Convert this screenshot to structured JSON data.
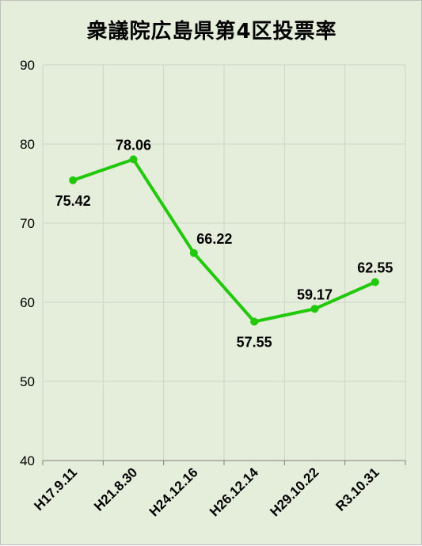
{
  "chart_data": {
    "type": "line",
    "title": "衆議院広島県第4区投票率",
    "xlabel": "",
    "ylabel": "",
    "categories": [
      "H17.9.11",
      "H21.8.30",
      "H24.12.16",
      "H26.12.14",
      "H29.10.22",
      "R3.10.31"
    ],
    "values": [
      75.42,
      78.06,
      66.22,
      57.55,
      59.17,
      62.55
    ],
    "data_labels": [
      "75.42",
      "78.06",
      "66.22",
      "57.55",
      "59.17",
      "62.55"
    ],
    "ylim": [
      40,
      90
    ],
    "yticks": [
      40,
      50,
      60,
      70,
      80,
      90
    ],
    "ytick_labels": [
      "40",
      "50",
      "60",
      "70",
      "80",
      "90"
    ],
    "grid": true,
    "legend": "none",
    "colors": {
      "background": "#e4eedb",
      "line": "#22c80a",
      "grid": "#cdd5c4",
      "axis": "#7f7f7f"
    }
  }
}
